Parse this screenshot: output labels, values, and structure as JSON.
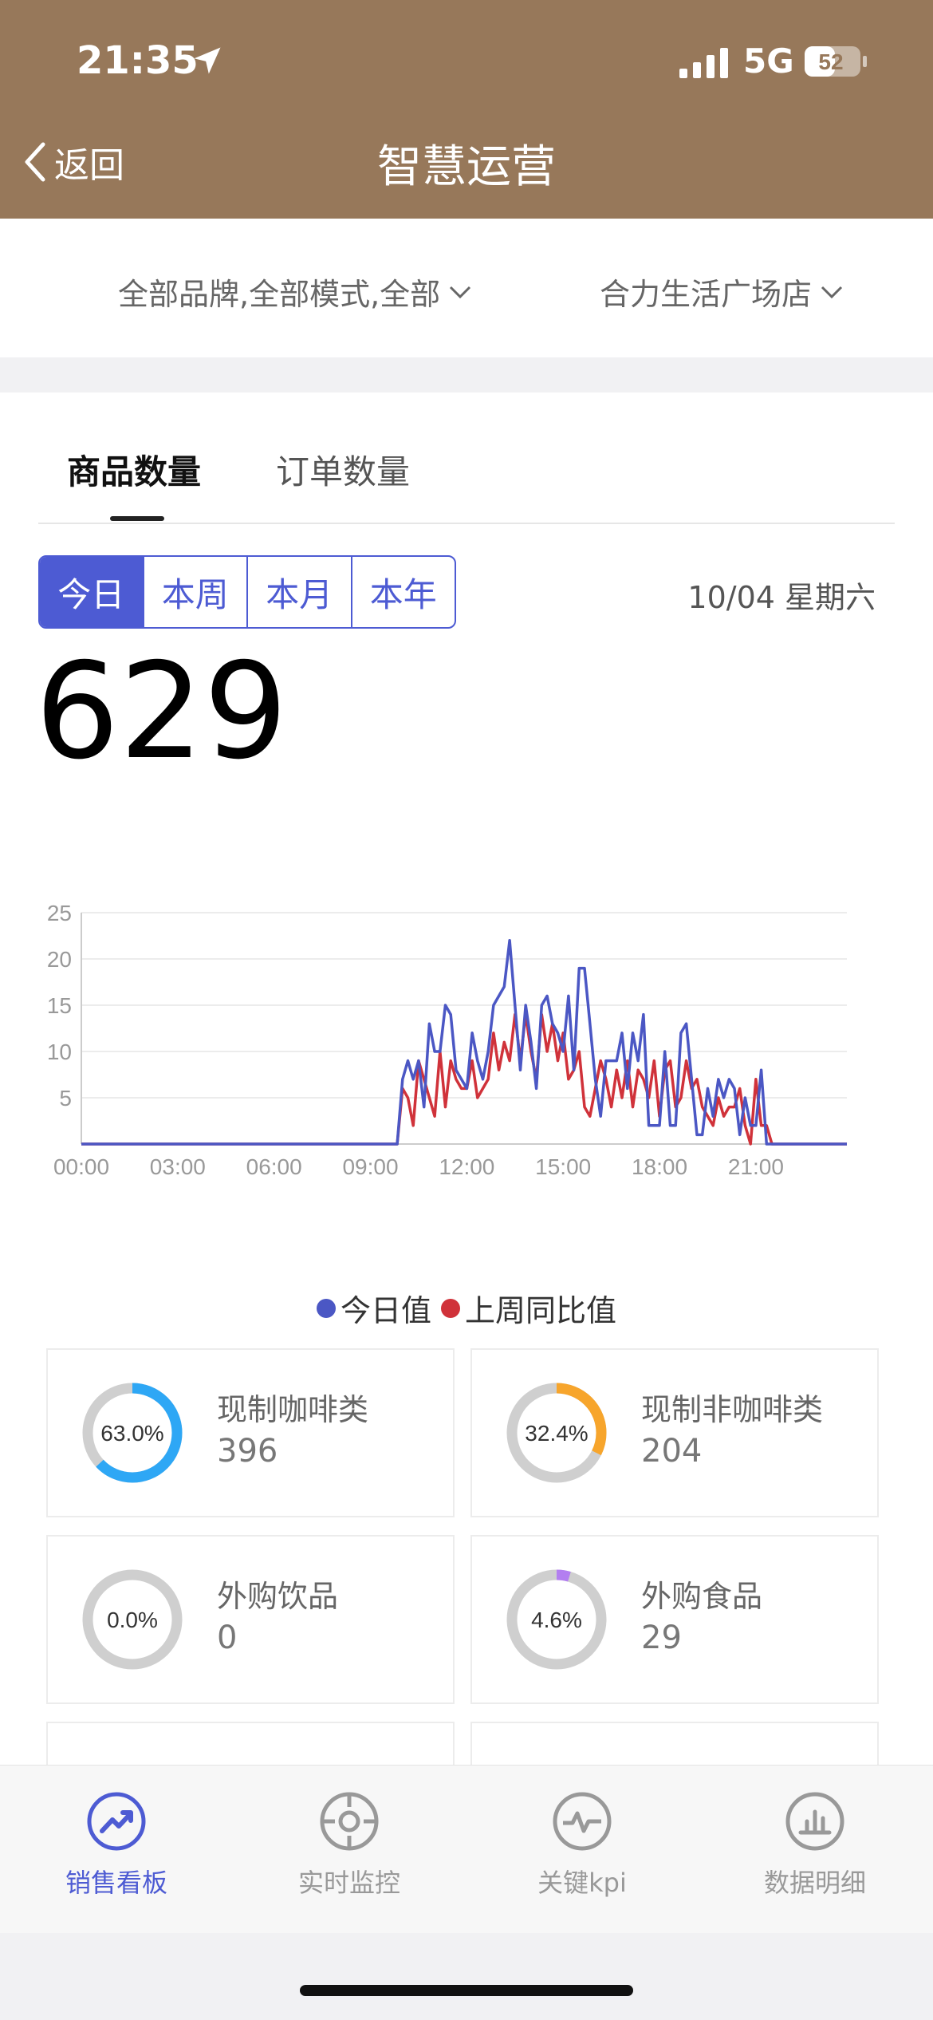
{
  "status_bar": {
    "time": "21:35",
    "network": "5G",
    "battery": "52"
  },
  "nav": {
    "back_label": "返回",
    "title": "智慧运营"
  },
  "filters": {
    "brand": "全部品牌,全部模式,全部",
    "store": "合力生活广场店"
  },
  "tabs": [
    {
      "label": "商品数量",
      "active": true
    },
    {
      "label": "订单数量",
      "active": false
    }
  ],
  "period_buttons": [
    "今日",
    "本周",
    "本月",
    "本年"
  ],
  "date_label": "10/04 星期六",
  "total": "629",
  "colors": {
    "header": "#97785a",
    "accent": "#4d5bd3",
    "series_today": "#4b57c4",
    "series_lastweek": "#d0323a"
  },
  "chart_data": {
    "type": "line",
    "x_ticks": [
      "00:00",
      "03:00",
      "06:00",
      "09:00",
      "12:00",
      "15:00",
      "18:00",
      "21:00"
    ],
    "y_ticks": [
      "5",
      "10",
      "15",
      "20",
      "25"
    ],
    "ylim": [
      0,
      25
    ],
    "xlim": [
      "00:00",
      "23:50"
    ],
    "grid": true,
    "legend_position": "bottom",
    "series": [
      {
        "name": "今日值",
        "color": "#4b57c4",
        "points": [
          [
            "00:00",
            0
          ],
          [
            "09:50",
            0
          ],
          [
            "10:00",
            7
          ],
          [
            "10:10",
            9
          ],
          [
            "10:20",
            7
          ],
          [
            "10:30",
            9
          ],
          [
            "10:40",
            4
          ],
          [
            "10:50",
            13
          ],
          [
            "11:00",
            10
          ],
          [
            "11:10",
            10
          ],
          [
            "11:20",
            15
          ],
          [
            "11:30",
            14
          ],
          [
            "11:40",
            8
          ],
          [
            "11:50",
            7
          ],
          [
            "12:00",
            6
          ],
          [
            "12:10",
            12
          ],
          [
            "12:20",
            9
          ],
          [
            "12:30",
            7
          ],
          [
            "12:40",
            10
          ],
          [
            "12:50",
            15
          ],
          [
            "13:00",
            16
          ],
          [
            "13:10",
            17
          ],
          [
            "13:20",
            22
          ],
          [
            "13:30",
            15
          ],
          [
            "13:40",
            8
          ],
          [
            "13:50",
            15
          ],
          [
            "14:00",
            11
          ],
          [
            "14:10",
            6
          ],
          [
            "14:20",
            15
          ],
          [
            "14:30",
            16
          ],
          [
            "14:40",
            13
          ],
          [
            "14:50",
            12
          ],
          [
            "15:00",
            10
          ],
          [
            "15:10",
            16
          ],
          [
            "15:20",
            8
          ],
          [
            "15:30",
            19
          ],
          [
            "15:40",
            19
          ],
          [
            "15:50",
            13
          ],
          [
            "16:00",
            7
          ],
          [
            "16:10",
            3
          ],
          [
            "16:20",
            9
          ],
          [
            "16:30",
            9
          ],
          [
            "16:40",
            9
          ],
          [
            "16:50",
            12
          ],
          [
            "17:00",
            6
          ],
          [
            "17:10",
            12
          ],
          [
            "17:20",
            9
          ],
          [
            "17:30",
            14
          ],
          [
            "17:40",
            2
          ],
          [
            "17:50",
            2
          ],
          [
            "18:00",
            2
          ],
          [
            "18:10",
            10
          ],
          [
            "18:20",
            2
          ],
          [
            "18:30",
            2
          ],
          [
            "18:40",
            12
          ],
          [
            "18:50",
            13
          ],
          [
            "19:00",
            7
          ],
          [
            "19:10",
            1
          ],
          [
            "19:20",
            1
          ],
          [
            "19:30",
            6
          ],
          [
            "19:40",
            3
          ],
          [
            "19:50",
            7
          ],
          [
            "20:00",
            5
          ],
          [
            "20:10",
            7
          ],
          [
            "20:20",
            6
          ],
          [
            "20:30",
            1
          ],
          [
            "20:40",
            5
          ],
          [
            "20:50",
            2
          ],
          [
            "21:00",
            2
          ],
          [
            "21:10",
            8
          ],
          [
            "21:20",
            0
          ],
          [
            "23:50",
            0
          ]
        ]
      },
      {
        "name": "上周同比值",
        "color": "#d0323a",
        "points": [
          [
            "00:00",
            0
          ],
          [
            "09:50",
            0
          ],
          [
            "10:00",
            6
          ],
          [
            "10:10",
            5
          ],
          [
            "10:20",
            2
          ],
          [
            "10:30",
            9
          ],
          [
            "10:40",
            7
          ],
          [
            "10:50",
            5
          ],
          [
            "11:00",
            3
          ],
          [
            "11:10",
            10
          ],
          [
            "11:20",
            4
          ],
          [
            "11:30",
            9
          ],
          [
            "11:40",
            7
          ],
          [
            "11:50",
            6
          ],
          [
            "12:00",
            6
          ],
          [
            "12:10",
            9
          ],
          [
            "12:20",
            5
          ],
          [
            "12:30",
            6
          ],
          [
            "12:40",
            7
          ],
          [
            "12:50",
            12
          ],
          [
            "13:00",
            8
          ],
          [
            "13:10",
            11
          ],
          [
            "13:20",
            9
          ],
          [
            "13:30",
            14
          ],
          [
            "13:40",
            9
          ],
          [
            "13:50",
            14
          ],
          [
            "14:00",
            10
          ],
          [
            "14:10",
            7
          ],
          [
            "14:20",
            14
          ],
          [
            "14:30",
            10
          ],
          [
            "14:40",
            13
          ],
          [
            "14:50",
            9
          ],
          [
            "15:00",
            12
          ],
          [
            "15:10",
            7
          ],
          [
            "15:20",
            8
          ],
          [
            "15:30",
            10
          ],
          [
            "15:40",
            4
          ],
          [
            "15:50",
            3
          ],
          [
            "16:00",
            6
          ],
          [
            "16:10",
            9
          ],
          [
            "16:20",
            7
          ],
          [
            "16:30",
            4
          ],
          [
            "16:40",
            8
          ],
          [
            "16:50",
            5
          ],
          [
            "17:00",
            9
          ],
          [
            "17:10",
            4
          ],
          [
            "17:20",
            8
          ],
          [
            "17:30",
            7
          ],
          [
            "17:40",
            5
          ],
          [
            "17:50",
            9
          ],
          [
            "18:00",
            3
          ],
          [
            "18:10",
            8
          ],
          [
            "18:20",
            9
          ],
          [
            "18:30",
            4
          ],
          [
            "18:40",
            5
          ],
          [
            "18:50",
            9
          ],
          [
            "19:00",
            6
          ],
          [
            "19:10",
            7
          ],
          [
            "19:20",
            4
          ],
          [
            "19:30",
            3
          ],
          [
            "19:40",
            2
          ],
          [
            "19:50",
            5
          ],
          [
            "20:00",
            3
          ],
          [
            "20:10",
            4
          ],
          [
            "20:20",
            4
          ],
          [
            "20:30",
            6
          ],
          [
            "20:40",
            2
          ],
          [
            "20:50",
            0
          ],
          [
            "21:00",
            7
          ],
          [
            "21:10",
            2
          ],
          [
            "21:20",
            2
          ],
          [
            "21:30",
            0
          ],
          [
            "23:50",
            0
          ]
        ]
      }
    ]
  },
  "categories": [
    {
      "name": "现制咖啡类",
      "count": "396",
      "percent_label": "63.0%",
      "percent": 63.0,
      "color": "#2ea7f5"
    },
    {
      "name": "现制非咖啡类",
      "count": "204",
      "percent_label": "32.4%",
      "percent": 32.4,
      "color": "#f7a52c"
    },
    {
      "name": "外购饮品",
      "count": "0",
      "percent_label": "0.0%",
      "percent": 0.0,
      "color": "#2ea7f5"
    },
    {
      "name": "外购食品",
      "count": "29",
      "percent_label": "4.6%",
      "percent": 4.6,
      "color": "#b37ff0"
    }
  ],
  "tabbar": [
    {
      "label": "销售看板",
      "icon": "trend-icon",
      "active": true
    },
    {
      "label": "实时监控",
      "icon": "target-icon",
      "active": false
    },
    {
      "label": "关键kpi",
      "icon": "pulse-icon",
      "active": false
    },
    {
      "label": "数据明细",
      "icon": "bar-chart-icon",
      "active": false
    }
  ]
}
